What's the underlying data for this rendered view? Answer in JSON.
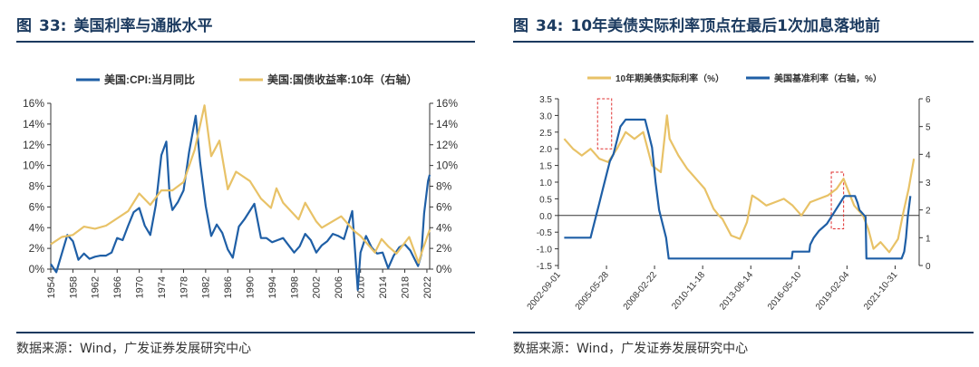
{
  "colors": {
    "blue": "#1f5fa6",
    "gold": "#e8c267",
    "title": "#1b3a5f",
    "axis": "#333333",
    "annot": "#e03030"
  },
  "left_panel": {
    "fig_label": "图",
    "fig_num": "33:",
    "fig_title": "美国利率与通胀水平",
    "source": "数据来源：Wind，广发证券发展研究中心"
  },
  "right_panel": {
    "fig_label": "图",
    "fig_num": "34:",
    "fig_title": "10年美债实际利率顶点在最后1次加息落地前",
    "source": "数据来源：Wind，广发证券发展研究中心"
  },
  "chart_data": [
    {
      "type": "line",
      "title": "美国利率与通胀水平",
      "x_ticks": [
        "1954",
        "1958",
        "1962",
        "1966",
        "1970",
        "1974",
        "1978",
        "1982",
        "1986",
        "1990",
        "1994",
        "1998",
        "2002",
        "2006",
        "2010",
        "2014",
        "2018",
        "2022"
      ],
      "xlim": [
        1954,
        2022.5
      ],
      "ylim_left": [
        0,
        16
      ],
      "ylim_right": [
        0,
        16
      ],
      "y_ticks_left": [
        "0%",
        "2%",
        "4%",
        "6%",
        "8%",
        "10%",
        "12%",
        "14%",
        "16%"
      ],
      "y_ticks_right": [
        "0%",
        "2%",
        "4%",
        "6%",
        "8%",
        "10%",
        "12%",
        "14%",
        "16%"
      ],
      "legend_position": "top",
      "series": [
        {
          "name": "美国:CPI:当月同比",
          "axis": "left",
          "color": "#1f5fa6",
          "x": [
            1954,
            1955,
            1956,
            1957,
            1958,
            1959,
            1960,
            1961,
            1962,
            1963,
            1964,
            1965,
            1966,
            1967,
            1968,
            1969,
            1970,
            1971,
            1972,
            1973,
            1974,
            1974.9,
            1975.5,
            1976,
            1977,
            1978,
            1979,
            1980.2,
            1981,
            1982,
            1983,
            1984,
            1985,
            1986,
            1986.9,
            1988,
            1989,
            1990.8,
            1992,
            1993,
            1994,
            1995,
            1996,
            1997,
            1998,
            1999,
            2000,
            2001,
            2002,
            2003,
            2004,
            2005,
            2006,
            2007,
            2008.5,
            2009.5,
            2010,
            2011,
            2012,
            2013,
            2014,
            2015,
            2016,
            2017,
            2018,
            2019,
            2020.4,
            2021,
            2021.5,
            2022.2,
            2022.5
          ],
          "y": [
            0.5,
            -0.3,
            1.5,
            3.3,
            2.7,
            0.9,
            1.5,
            1.0,
            1.2,
            1.3,
            1.3,
            1.6,
            3.0,
            2.8,
            4.2,
            5.5,
            5.9,
            4.2,
            3.3,
            6.2,
            11.0,
            12.3,
            7.0,
            5.7,
            6.5,
            7.6,
            11.3,
            14.8,
            10.3,
            6.1,
            3.2,
            4.3,
            3.5,
            1.9,
            1.1,
            4.1,
            4.8,
            6.3,
            3.0,
            3.0,
            2.6,
            2.8,
            3.0,
            2.3,
            1.6,
            2.2,
            3.4,
            2.8,
            1.6,
            2.3,
            2.7,
            3.4,
            3.2,
            2.9,
            5.6,
            -2.0,
            1.6,
            3.2,
            2.1,
            1.5,
            1.6,
            0.1,
            1.3,
            2.1,
            2.4,
            1.8,
            0.3,
            1.4,
            5.4,
            8.5,
            9.1
          ]
        },
        {
          "name": "美国:国债收益率:10年（右轴）",
          "axis": "right",
          "color": "#e8c267",
          "x": [
            1954,
            1956,
            1958,
            1960,
            1962,
            1964,
            1966,
            1968,
            1970,
            1972,
            1974,
            1976,
            1978,
            1980,
            1981.8,
            1983,
            1984.5,
            1986,
            1987.5,
            1990,
            1992,
            1993.8,
            1994.8,
            1996,
            1998.8,
            2000,
            2002,
            2003,
            2006.5,
            2008.8,
            2010,
            2012.6,
            2013.8,
            2015,
            2016.5,
            2018.8,
            2020.5,
            2021,
            2022.5
          ],
          "y": [
            2.4,
            3.1,
            3.3,
            4.1,
            3.9,
            4.2,
            4.9,
            5.6,
            7.3,
            6.2,
            7.6,
            7.6,
            8.4,
            11.5,
            15.8,
            10.9,
            12.4,
            7.7,
            9.4,
            8.5,
            6.8,
            5.9,
            7.8,
            6.4,
            4.8,
            6.4,
            4.6,
            4.0,
            5.1,
            3.7,
            3.2,
            1.6,
            2.9,
            2.2,
            1.5,
            3.1,
            0.6,
            1.5,
            3.8
          ]
        }
      ]
    },
    {
      "type": "line",
      "title": "10年美债实际利率顶点在最后1次加息落地前",
      "x_ticks": [
        "2002-09-01",
        "2005-05-28",
        "2008-02-22",
        "2010-11-18",
        "2013-08-14",
        "2016-05-10",
        "2019-02-04",
        "2021-10-31"
      ],
      "xlim": [
        2002.67,
        2023.2
      ],
      "ylim_left": [
        -1.5,
        3.5
      ],
      "ylim_right": [
        0,
        6
      ],
      "y_ticks_left": [
        "-1.5",
        "-1.0",
        "-0.5",
        "0.0",
        "0.5",
        "1.0",
        "1.5",
        "2.0",
        "2.5",
        "3.0",
        "3.5"
      ],
      "y_ticks_right": [
        "0",
        "1",
        "2",
        "3",
        "4",
        "5",
        "6"
      ],
      "legend_position": "top",
      "annotations": [
        {
          "type": "dashed-box",
          "x_range": [
            2004.9,
            2005.7
          ],
          "y_range_left": [
            2.0,
            3.5
          ]
        },
        {
          "type": "dashed-box",
          "x_range": [
            2018.2,
            2018.9
          ],
          "y_range_left": [
            -0.4,
            1.3
          ]
        }
      ],
      "series": [
        {
          "name": "10年期美债实际利率（%）",
          "axis": "left",
          "color": "#e8c267",
          "x": [
            2003.0,
            2003.5,
            2004.0,
            2004.5,
            2005.0,
            2005.5,
            2006.0,
            2006.5,
            2007.0,
            2007.5,
            2008.0,
            2008.5,
            2008.85,
            2009.0,
            2009.5,
            2010.0,
            2010.5,
            2011.0,
            2011.5,
            2011.8,
            2012.0,
            2012.5,
            2013.0,
            2013.4,
            2013.7,
            2014.0,
            2014.5,
            2015.0,
            2015.5,
            2016.0,
            2016.5,
            2017.0,
            2017.5,
            2018.0,
            2018.5,
            2018.9,
            2019.5,
            2020.0,
            2020.3,
            2020.6,
            2021.0,
            2021.5,
            2022.0,
            2022.3,
            2022.6,
            2022.9
          ],
          "y": [
            2.3,
            2.0,
            1.8,
            2.0,
            1.7,
            1.6,
            2.0,
            2.5,
            2.3,
            2.5,
            1.5,
            1.3,
            3.0,
            2.3,
            1.8,
            1.4,
            1.1,
            0.8,
            0.2,
            0.0,
            -0.1,
            -0.6,
            -0.7,
            -0.2,
            0.6,
            0.5,
            0.3,
            0.4,
            0.5,
            0.3,
            0.0,
            0.4,
            0.5,
            0.6,
            0.8,
            1.1,
            0.3,
            0.0,
            -0.4,
            -1.0,
            -0.8,
            -1.1,
            -0.7,
            0.1,
            0.8,
            1.7
          ]
        },
        {
          "name": "美国基准利率（右轴，%）",
          "axis": "right",
          "color": "#1f5fa6",
          "x": [
            2003.0,
            2004.5,
            2004.6,
            2004.8,
            2005.0,
            2005.2,
            2005.4,
            2005.6,
            2005.8,
            2006.0,
            2006.2,
            2006.5,
            2007.6,
            2007.8,
            2008.0,
            2008.2,
            2008.4,
            2008.8,
            2008.95,
            2015.95,
            2016.0,
            2016.95,
            2017.0,
            2017.2,
            2017.5,
            2017.95,
            2018.2,
            2018.45,
            2018.7,
            2018.95,
            2019.55,
            2019.7,
            2019.8,
            2020.15,
            2020.2,
            2022.2,
            2022.35,
            2022.45,
            2022.55,
            2022.7
          ],
          "y": [
            1.0,
            1.0,
            1.25,
            1.75,
            2.25,
            2.75,
            3.25,
            3.75,
            4.0,
            4.5,
            5.0,
            5.25,
            5.25,
            4.75,
            4.25,
            3.0,
            2.0,
            1.0,
            0.25,
            0.25,
            0.5,
            0.5,
            0.75,
            1.0,
            1.25,
            1.5,
            1.75,
            2.0,
            2.25,
            2.5,
            2.5,
            2.25,
            2.0,
            1.75,
            0.25,
            0.25,
            0.5,
            1.0,
            1.75,
            2.5
          ]
        }
      ]
    }
  ]
}
